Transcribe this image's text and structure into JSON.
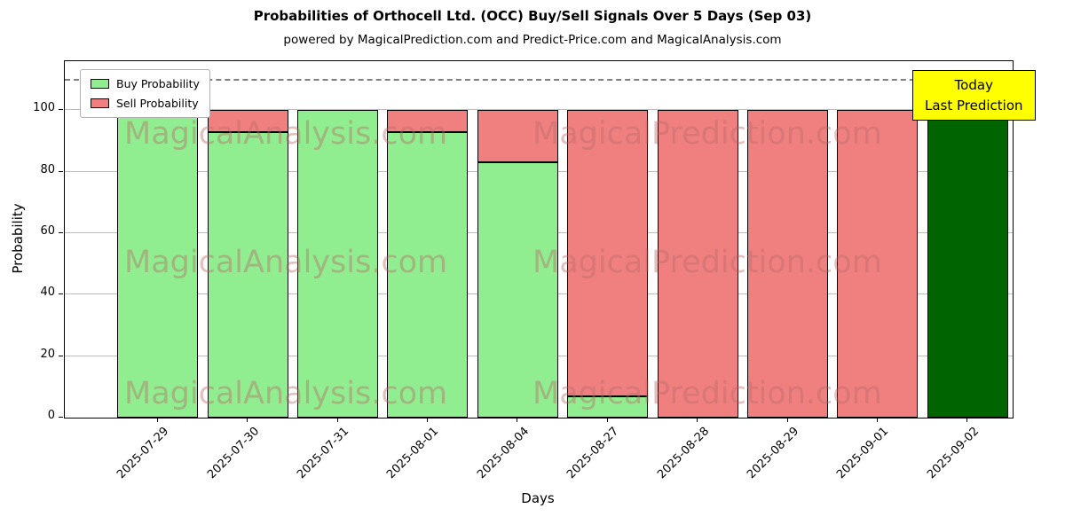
{
  "figure": {
    "title": "Probabilities of Orthocell Ltd. (OCC) Buy/Sell Signals Over 5 Days (Sep 03)",
    "subtitle": "powered by MagicalPrediction.com and Predict-Price.com and MagicalAnalysis.com"
  },
  "axes": {
    "xlabel": "Days",
    "ylabel": "Probability"
  },
  "legend": {
    "items": [
      {
        "label": "Buy Probability",
        "color": "#90EE90"
      },
      {
        "label": "Sell Probability",
        "color": "#F08080"
      }
    ]
  },
  "annotation": {
    "line1": "Today",
    "line2": "Last Prediction",
    "bg": "#FFFF00"
  },
  "watermarks": {
    "left": "MagicalAnalysis.com",
    "right": "MagicalPrediction.com"
  },
  "chart_data": {
    "type": "bar",
    "stacked": true,
    "title": "Probabilities of Orthocell Ltd. (OCC) Buy/Sell Signals Over 5 Days (Sep 03)",
    "xlabel": "Days",
    "ylabel": "Probability",
    "categories": [
      "2025-07-29",
      "2025-07-30",
      "2025-07-31",
      "2025-08-01",
      "2025-08-04",
      "2025-08-27",
      "2025-08-28",
      "2025-08-29",
      "2025-09-01",
      "2025-09-02"
    ],
    "series": [
      {
        "name": "Buy Probability",
        "color": "#90EE90",
        "values": [
          100,
          93,
          100,
          93,
          83,
          7,
          0,
          0,
          0,
          100
        ]
      },
      {
        "name": "Sell Probability",
        "color": "#F08080",
        "values": [
          0,
          7,
          0,
          7,
          17,
          93,
          100,
          100,
          100,
          0
        ]
      }
    ],
    "today_bar": {
      "index": 9,
      "color": "#006400"
    },
    "yticks": [
      0,
      20,
      40,
      60,
      80,
      100
    ],
    "ylim": [
      0,
      116
    ],
    "dashed_line_y": 110,
    "grid": true,
    "legend_position": "upper left"
  }
}
